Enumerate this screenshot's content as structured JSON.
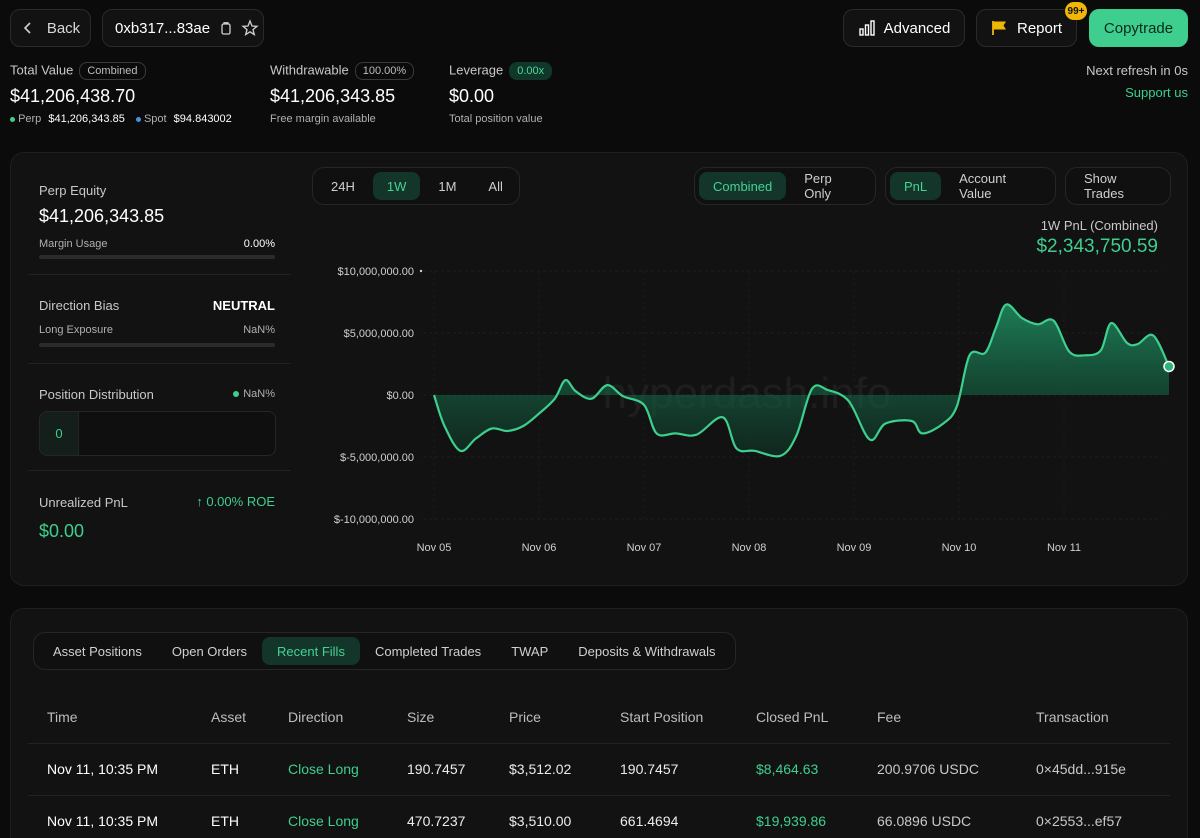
{
  "header": {
    "back_label": "Back",
    "address": "0xb317...83ae",
    "advanced_label": "Advanced",
    "report_label": "Report",
    "report_badge": "99+",
    "copytrade_label": "Copytrade"
  },
  "summary": {
    "total_value_label": "Total Value",
    "total_value_pill": "Combined",
    "total_value": "$41,206,438.70",
    "perp_label": "Perp",
    "perp_value": "$41,206,343.85",
    "spot_label": "Spot",
    "spot_value": "$94.843002",
    "withdrawable_label": "Withdrawable",
    "withdrawable_pill": "100.00%",
    "withdrawable_value": "$41,206,343.85",
    "withdrawable_sub": "Free margin available",
    "leverage_label": "Leverage",
    "leverage_pill": "0.00x",
    "leverage_value": "$0.00",
    "leverage_sub": "Total position value",
    "refresh_text": "Next refresh in 0s",
    "support_label": "Support us"
  },
  "side": {
    "perp_equity_label": "Perp Equity",
    "perp_equity_value": "$41,206,343.85",
    "margin_usage_label": "Margin Usage",
    "margin_usage_value": "0.00%",
    "direction_bias_label": "Direction Bias",
    "direction_bias_value": "NEUTRAL",
    "long_exposure_label": "Long Exposure",
    "long_exposure_value": "NaN%",
    "position_dist_label": "Position Distribution",
    "position_dist_value": "NaN%",
    "position_count": "0",
    "unrealized_label": "Unrealized PnL",
    "roe_value": "0.00% ROE",
    "unrealized_value": "$0.00"
  },
  "chart_controls": {
    "ranges": [
      "24H",
      "1W",
      "1M",
      "All"
    ],
    "active_range": 1,
    "modes": [
      "Combined",
      "Perp Only"
    ],
    "active_mode": 0,
    "metrics": [
      "PnL",
      "Account Value"
    ],
    "active_metric": 0,
    "show_trades_label": "Show Trades",
    "pnl_title": "1W PnL (Combined)",
    "pnl_value": "$2,343,750.59",
    "watermark": "hyperdash.info"
  },
  "chart_data": {
    "type": "area",
    "y_ticks": [
      "$10,000,000.00",
      "$5,000,000.00",
      "$0.00",
      "$-5,000,000.00",
      "$-10,000,000.00"
    ],
    "ylim": [
      -10000000,
      10000000
    ],
    "x_ticks": [
      "Nov 05",
      "Nov 06",
      "Nov 07",
      "Nov 08",
      "Nov 09",
      "Nov 10",
      "Nov 11"
    ],
    "xlim": [
      0,
      7
    ],
    "series": [
      {
        "values": [
          [
            0,
            0
          ],
          [
            0.1,
            -2.5
          ],
          [
            0.25,
            -4.5
          ],
          [
            0.4,
            -3.5
          ],
          [
            0.55,
            -2.7
          ],
          [
            0.7,
            -2.9
          ],
          [
            0.85,
            -2.5
          ],
          [
            1,
            -1.5
          ],
          [
            1.15,
            -0.3
          ],
          [
            1.25,
            1.2
          ],
          [
            1.35,
            0.3
          ],
          [
            1.5,
            -0.3
          ],
          [
            1.65,
            0.8
          ],
          [
            1.8,
            -0.1
          ],
          [
            2,
            -0.8
          ],
          [
            2.12,
            -3.1
          ],
          [
            2.3,
            -3.1
          ],
          [
            2.5,
            -3.2
          ],
          [
            2.75,
            -1.8
          ],
          [
            2.88,
            -4.3
          ],
          [
            3.05,
            -4.5
          ],
          [
            3.3,
            -4.9
          ],
          [
            3.45,
            -3.3
          ],
          [
            3.6,
            0.5
          ],
          [
            3.75,
            0.4
          ],
          [
            3.95,
            -0.5
          ],
          [
            4.15,
            -3.6
          ],
          [
            4.3,
            -2.3
          ],
          [
            4.55,
            -2.1
          ],
          [
            4.65,
            -3.1
          ],
          [
            4.85,
            -2.3
          ],
          [
            4.98,
            -0.9
          ],
          [
            5.1,
            3.2
          ],
          [
            5.25,
            3.4
          ],
          [
            5.35,
            5.4
          ],
          [
            5.45,
            7.3
          ],
          [
            5.6,
            6.2
          ],
          [
            5.75,
            5.7
          ],
          [
            5.9,
            6.0
          ],
          [
            6.05,
            3.5
          ],
          [
            6.2,
            3.2
          ],
          [
            6.35,
            3.6
          ],
          [
            6.45,
            5.8
          ],
          [
            6.6,
            4.2
          ],
          [
            6.7,
            4.1
          ],
          [
            6.85,
            4.8
          ],
          [
            7,
            2.3
          ]
        ]
      }
    ]
  },
  "fills_tabs": [
    "Asset Positions",
    "Open Orders",
    "Recent Fills",
    "Completed Trades",
    "TWAP",
    "Deposits & Withdrawals"
  ],
  "fills_active": 2,
  "fills": {
    "columns": [
      "Time",
      "Asset",
      "Direction",
      "Size",
      "Price",
      "Start Position",
      "Closed PnL",
      "Fee",
      "Transaction"
    ],
    "rows": [
      [
        "Nov 11, 10:35 PM",
        "ETH",
        "Close Long",
        "190.7457",
        "$3,512.02",
        "190.7457",
        "$8,464.63",
        "200.9706 USDC",
        "0×45dd...915e"
      ],
      [
        "Nov 11, 10:35 PM",
        "ETH",
        "Close Long",
        "470.7237",
        "$3,510.00",
        "661.4694",
        "$19,939.86",
        "66.0896 USDC",
        "0×2553...ef57"
      ]
    ]
  },
  "colors": {
    "accent": "#3ecf8e",
    "bg": "#0b0b0b",
    "card": "#121212"
  }
}
